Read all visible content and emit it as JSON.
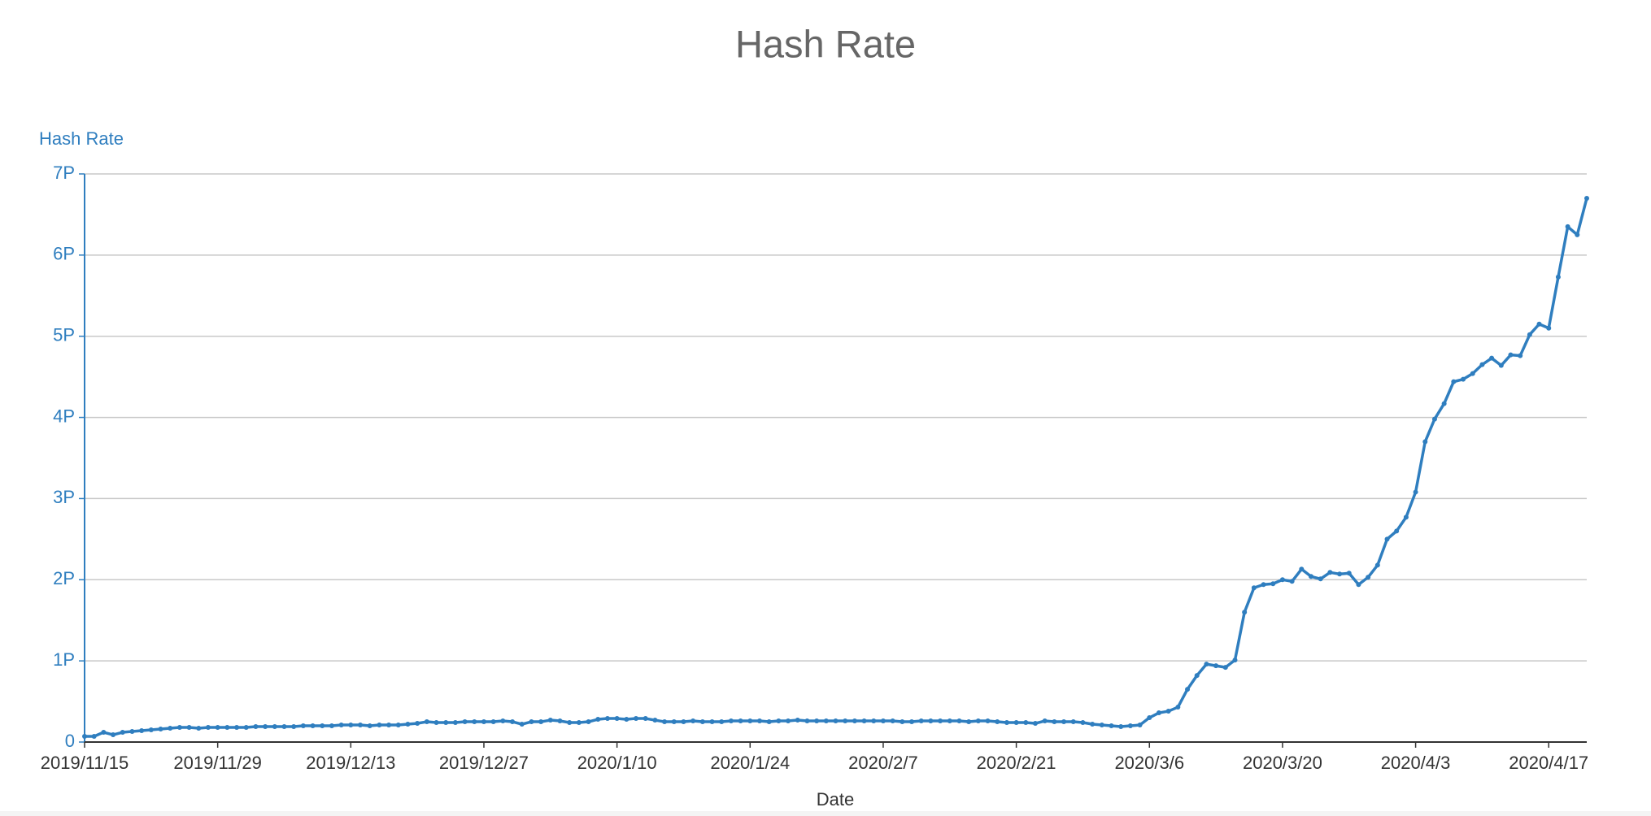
{
  "chart_data": {
    "type": "line",
    "title": "Hash Rate",
    "y_label": "Hash Rate",
    "x_label": "Date",
    "categories": [
      "2019/11/15",
      null,
      null,
      null,
      null,
      null,
      null,
      null,
      null,
      null,
      null,
      null,
      null,
      null,
      "2019/11/29",
      null,
      null,
      null,
      null,
      null,
      null,
      null,
      null,
      null,
      null,
      null,
      null,
      null,
      "2019/12/13",
      null,
      null,
      null,
      null,
      null,
      null,
      null,
      null,
      null,
      null,
      null,
      null,
      null,
      "2019/12/27",
      null,
      null,
      null,
      null,
      null,
      null,
      null,
      null,
      null,
      null,
      null,
      null,
      null,
      "2020/1/10",
      null,
      null,
      null,
      null,
      null,
      null,
      null,
      null,
      null,
      null,
      null,
      null,
      null,
      "2020/1/24",
      null,
      null,
      null,
      null,
      null,
      null,
      null,
      null,
      null,
      null,
      null,
      null,
      null,
      "2020/2/7",
      null,
      null,
      null,
      null,
      null,
      null,
      null,
      null,
      null,
      null,
      null,
      null,
      null,
      "2020/2/21",
      null,
      null,
      null,
      null,
      null,
      null,
      null,
      null,
      null,
      null,
      null,
      null,
      null,
      "2020/3/6",
      null,
      null,
      null,
      null,
      null,
      null,
      null,
      null,
      null,
      null,
      null,
      null,
      null,
      "2020/3/20",
      null,
      null,
      null,
      null,
      null,
      null,
      null,
      null,
      null,
      null,
      null,
      null,
      null,
      "2020/4/3",
      null,
      null,
      null,
      null,
      null,
      null,
      null,
      null,
      null,
      null,
      null,
      null,
      null,
      "2020/4/17",
      null,
      null,
      null,
      null
    ],
    "series": [
      {
        "name": "Hash Rate",
        "color": "#2f7ebf",
        "values": [
          0.07,
          0.07,
          0.12,
          0.09,
          0.12,
          0.13,
          0.14,
          0.15,
          0.16,
          0.17,
          0.18,
          0.18,
          0.17,
          0.18,
          0.18,
          0.18,
          0.18,
          0.18,
          0.19,
          0.19,
          0.19,
          0.19,
          0.19,
          0.2,
          0.2,
          0.2,
          0.2,
          0.21,
          0.21,
          0.21,
          0.2,
          0.21,
          0.21,
          0.21,
          0.22,
          0.23,
          0.25,
          0.24,
          0.24,
          0.24,
          0.25,
          0.25,
          0.25,
          0.25,
          0.26,
          0.25,
          0.22,
          0.25,
          0.25,
          0.27,
          0.26,
          0.24,
          0.24,
          0.25,
          0.28,
          0.29,
          0.29,
          0.28,
          0.29,
          0.29,
          0.27,
          0.25,
          0.25,
          0.25,
          0.26,
          0.25,
          0.25,
          0.25,
          0.26,
          0.26,
          0.26,
          0.26,
          0.25,
          0.26,
          0.26,
          0.27,
          0.26,
          0.26,
          0.26,
          0.26,
          0.26,
          0.26,
          0.26,
          0.26,
          0.26,
          0.26,
          0.25,
          0.25,
          0.26,
          0.26,
          0.26,
          0.26,
          0.26,
          0.25,
          0.26,
          0.26,
          0.25,
          0.24,
          0.24,
          0.24,
          0.23,
          0.26,
          0.25,
          0.25,
          0.25,
          0.24,
          0.22,
          0.21,
          0.2,
          0.19,
          0.2,
          0.21,
          0.3,
          0.36,
          0.38,
          0.43,
          0.65,
          0.82,
          0.96,
          0.94,
          0.92,
          1.01,
          1.6,
          1.9,
          1.94,
          1.95,
          2.0,
          1.98,
          2.13,
          2.04,
          2.01,
          2.09,
          2.07,
          2.08,
          1.94,
          2.03,
          2.18,
          2.5,
          2.6,
          2.77,
          3.08,
          3.7,
          3.98,
          4.17,
          4.44,
          4.47,
          4.54,
          4.65,
          4.73,
          4.64,
          4.77,
          4.76,
          5.02,
          5.15,
          5.1,
          5.73,
          6.35,
          6.25,
          6.7
        ]
      }
    ],
    "ylim": [
      0,
      7
    ],
    "yticks": [
      0,
      {
        "value": 1,
        "label": "1P"
      },
      {
        "value": 2,
        "label": "2P"
      },
      {
        "value": 3,
        "label": "3P"
      },
      {
        "value": 4,
        "label": "4P"
      },
      {
        "value": 5,
        "label": "5P"
      },
      {
        "value": 6,
        "label": "6P"
      },
      {
        "value": 7,
        "label": "7P"
      }
    ],
    "grid": true
  }
}
